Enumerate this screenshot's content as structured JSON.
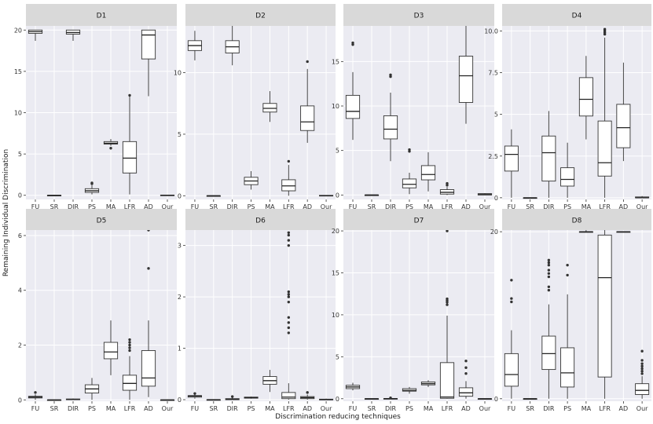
{
  "chart_data": {
    "type": "boxplot-facets",
    "xlabel": "Discrimination reducing techniques",
    "ylabel": "Remaining Individual Discrimination",
    "categories": [
      "FU",
      "SR",
      "DIR",
      "PS",
      "MA",
      "LFR",
      "AD",
      "Our"
    ],
    "colors": {
      "strip": "#d9d9d9",
      "panel": "#ebebf2",
      "box_fill": "#ffffff",
      "line": "#333333"
    },
    "panels": [
      {
        "title": "D1",
        "ylim": [
          -0.5,
          20.5
        ],
        "yticks": [
          0,
          5,
          10,
          15,
          20
        ],
        "boxes": [
          {
            "cat": "FU",
            "min": 18.7,
            "q1": 19.6,
            "median": 19.8,
            "q3": 20.0,
            "max": 20.0,
            "outliers": []
          },
          {
            "cat": "SR",
            "min": 0.0,
            "q1": 0.0,
            "median": 0.0,
            "q3": 0.0,
            "max": 0.0,
            "outliers": []
          },
          {
            "cat": "DIR",
            "min": 18.7,
            "q1": 19.5,
            "median": 19.7,
            "q3": 20.0,
            "max": 20.0,
            "outliers": []
          },
          {
            "cat": "PS",
            "min": 0.1,
            "q1": 0.35,
            "median": 0.55,
            "q3": 0.8,
            "max": 1.2,
            "outliers": [
              1.4,
              1.5
            ]
          },
          {
            "cat": "MA",
            "min": 6.0,
            "q1": 6.2,
            "median": 6.3,
            "q3": 6.5,
            "max": 6.8,
            "outliers": [
              5.7
            ]
          },
          {
            "cat": "LFR",
            "min": 0.1,
            "q1": 2.7,
            "median": 4.5,
            "q3": 6.5,
            "max": 12.0,
            "outliers": [
              12.1
            ]
          },
          {
            "cat": "AD",
            "min": 12.0,
            "q1": 16.5,
            "median": 19.4,
            "q3": 20.0,
            "max": 20.0,
            "outliers": []
          },
          {
            "cat": "Our",
            "min": 0.0,
            "q1": 0.0,
            "median": 0.0,
            "q3": 0.03,
            "max": 0.05,
            "outliers": []
          }
        ]
      },
      {
        "title": "D2",
        "ylim": [
          -0.3,
          13.8
        ],
        "yticks": [
          0,
          5,
          10
        ],
        "boxes": [
          {
            "cat": "FU",
            "min": 11.0,
            "q1": 11.8,
            "median": 12.2,
            "q3": 12.6,
            "max": 13.4,
            "outliers": []
          },
          {
            "cat": "SR",
            "min": 0.0,
            "q1": 0.0,
            "median": 0.0,
            "q3": 0.0,
            "max": 0.0,
            "outliers": []
          },
          {
            "cat": "DIR",
            "min": 10.6,
            "q1": 11.6,
            "median": 12.1,
            "q3": 12.6,
            "max": 13.8,
            "outliers": []
          },
          {
            "cat": "PS",
            "min": 0.5,
            "q1": 0.9,
            "median": 1.2,
            "q3": 1.5,
            "max": 2.0,
            "outliers": []
          },
          {
            "cat": "MA",
            "min": 6.0,
            "q1": 6.8,
            "median": 7.1,
            "q3": 7.5,
            "max": 8.5,
            "outliers": []
          },
          {
            "cat": "LFR",
            "min": 0.0,
            "q1": 0.4,
            "median": 0.8,
            "q3": 1.3,
            "max": 2.5,
            "outliers": [
              2.8
            ]
          },
          {
            "cat": "AD",
            "min": 4.3,
            "q1": 5.3,
            "median": 6.0,
            "q3": 7.3,
            "max": 10.3,
            "outliers": [
              10.9
            ]
          },
          {
            "cat": "Our",
            "min": 0.0,
            "q1": 0.0,
            "median": 0.0,
            "q3": 0.03,
            "max": 0.05,
            "outliers": []
          }
        ]
      },
      {
        "title": "D3",
        "ylim": [
          -0.5,
          19.0
        ],
        "yticks": [
          0,
          5,
          10,
          15
        ],
        "boxes": [
          {
            "cat": "FU",
            "min": 6.2,
            "q1": 8.6,
            "median": 9.4,
            "q3": 11.2,
            "max": 13.8,
            "outliers": [
              16.9,
              17.1
            ]
          },
          {
            "cat": "SR",
            "min": 0.0,
            "q1": 0.0,
            "median": 0.0,
            "q3": 0.0,
            "max": 0.0,
            "outliers": []
          },
          {
            "cat": "DIR",
            "min": 3.8,
            "q1": 6.3,
            "median": 7.4,
            "q3": 8.9,
            "max": 11.5,
            "outliers": [
              13.3,
              13.5
            ]
          },
          {
            "cat": "PS",
            "min": 0.1,
            "q1": 0.8,
            "median": 1.2,
            "q3": 1.8,
            "max": 2.5,
            "outliers": [
              4.9,
              5.1
            ]
          },
          {
            "cat": "MA",
            "min": 0.4,
            "q1": 1.7,
            "median": 2.3,
            "q3": 3.3,
            "max": 4.8,
            "outliers": []
          },
          {
            "cat": "LFR",
            "min": 0.0,
            "q1": 0.1,
            "median": 0.3,
            "q3": 0.6,
            "max": 0.9,
            "outliers": [
              1.1,
              1.3
            ]
          },
          {
            "cat": "AD",
            "min": 8.0,
            "q1": 10.4,
            "median": 13.4,
            "q3": 15.6,
            "max": 19.0,
            "outliers": []
          },
          {
            "cat": "Our",
            "min": 0.0,
            "q1": 0.0,
            "median": 0.1,
            "q3": 0.15,
            "max": 0.2,
            "outliers": []
          }
        ]
      },
      {
        "title": "D4",
        "ylim": [
          -0.1,
          10.3
        ],
        "yticks": [
          0,
          2.5,
          5,
          7.5,
          10
        ],
        "ytick_labels": [
          "0",
          "2.5",
          "5",
          "7.5",
          "10.0"
        ],
        "boxes": [
          {
            "cat": "FU",
            "min": 0.0,
            "q1": 1.6,
            "median": 2.6,
            "q3": 3.1,
            "max": 4.1,
            "outliers": []
          },
          {
            "cat": "SR",
            "min": 0.0,
            "q1": 0.0,
            "median": 0.0,
            "q3": 0.0,
            "max": 0.0,
            "outliers": []
          },
          {
            "cat": "DIR",
            "min": 0.0,
            "q1": 1.0,
            "median": 2.7,
            "q3": 3.7,
            "max": 5.2,
            "outliers": []
          },
          {
            "cat": "PS",
            "min": 0.0,
            "q1": 0.7,
            "median": 1.1,
            "q3": 1.8,
            "max": 3.3,
            "outliers": []
          },
          {
            "cat": "MA",
            "min": 3.5,
            "q1": 4.9,
            "median": 5.9,
            "q3": 7.2,
            "max": 8.5,
            "outliers": []
          },
          {
            "cat": "LFR",
            "min": 0.0,
            "q1": 1.3,
            "median": 2.1,
            "q3": 4.6,
            "max": 9.6,
            "outliers": [
              9.8,
              9.9,
              10.0,
              10.1
            ]
          },
          {
            "cat": "AD",
            "min": 2.2,
            "q1": 3.0,
            "median": 4.2,
            "q3": 5.6,
            "max": 8.1,
            "outliers": []
          },
          {
            "cat": "Our",
            "min": 0.0,
            "q1": 0.0,
            "median": 0.0,
            "q3": 0.05,
            "max": 0.1,
            "outliers": []
          }
        ]
      },
      {
        "title": "D5",
        "ylim": [
          -0.05,
          6.2
        ],
        "yticks": [
          0,
          2,
          4,
          6
        ],
        "boxes": [
          {
            "cat": "FU",
            "min": 0.0,
            "q1": 0.07,
            "median": 0.1,
            "q3": 0.13,
            "max": 0.2,
            "outliers": [
              0.27
            ]
          },
          {
            "cat": "SR",
            "min": 0.0,
            "q1": 0.0,
            "median": 0.0,
            "q3": 0.0,
            "max": 0.0,
            "outliers": []
          },
          {
            "cat": "DIR",
            "min": 0.0,
            "q1": 0.01,
            "median": 0.02,
            "q3": 0.03,
            "max": 0.05,
            "outliers": []
          },
          {
            "cat": "PS",
            "min": 0.0,
            "q1": 0.25,
            "median": 0.4,
            "q3": 0.55,
            "max": 0.8,
            "outliers": []
          },
          {
            "cat": "MA",
            "min": 0.9,
            "q1": 1.5,
            "median": 1.75,
            "q3": 2.1,
            "max": 2.9,
            "outliers": []
          },
          {
            "cat": "LFR",
            "min": 0.0,
            "q1": 0.35,
            "median": 0.6,
            "q3": 0.9,
            "max": 1.6,
            "outliers": [
              1.8,
              1.9,
              2.0,
              2.1,
              2.2
            ]
          },
          {
            "cat": "AD",
            "min": 0.1,
            "q1": 0.5,
            "median": 0.8,
            "q3": 1.8,
            "max": 2.9,
            "outliers": [
              4.8,
              6.2
            ]
          },
          {
            "cat": "Our",
            "min": 0.0,
            "q1": 0.0,
            "median": 0.0,
            "q3": 0.0,
            "max": 0.01,
            "outliers": []
          }
        ]
      },
      {
        "title": "D6",
        "ylim": [
          -0.03,
          3.3
        ],
        "yticks": [
          0,
          1,
          2,
          3
        ],
        "boxes": [
          {
            "cat": "FU",
            "min": 0.02,
            "q1": 0.05,
            "median": 0.07,
            "q3": 0.08,
            "max": 0.1,
            "outliers": [
              0.12
            ]
          },
          {
            "cat": "SR",
            "min": 0.0,
            "q1": 0.0,
            "median": 0.0,
            "q3": 0.0,
            "max": 0.0,
            "outliers": []
          },
          {
            "cat": "DIR",
            "min": 0.0,
            "q1": 0.0,
            "median": 0.01,
            "q3": 0.02,
            "max": 0.04,
            "outliers": [
              0.06
            ]
          },
          {
            "cat": "PS",
            "min": 0.02,
            "q1": 0.03,
            "median": 0.04,
            "q3": 0.05,
            "max": 0.06,
            "outliers": []
          },
          {
            "cat": "MA",
            "min": 0.15,
            "q1": 0.3,
            "median": 0.37,
            "q3": 0.45,
            "max": 0.58,
            "outliers": []
          },
          {
            "cat": "LFR",
            "min": 0.0,
            "q1": 0.02,
            "median": 0.05,
            "q3": 0.14,
            "max": 0.32,
            "outliers": [
              1.3,
              1.4,
              1.5,
              1.6,
              1.9,
              2.0,
              2.05,
              2.1,
              3.0,
              3.1,
              3.2,
              3.25
            ]
          },
          {
            "cat": "AD",
            "min": 0.0,
            "q1": 0.02,
            "median": 0.04,
            "q3": 0.06,
            "max": 0.1,
            "outliers": [
              0.14
            ]
          },
          {
            "cat": "Our",
            "min": 0.0,
            "q1": 0.0,
            "median": 0.0,
            "q3": 0.01,
            "max": 0.02,
            "outliers": []
          }
        ]
      },
      {
        "title": "D7",
        "ylim": [
          -0.3,
          20.1
        ],
        "yticks": [
          0,
          5,
          10,
          15,
          20
        ],
        "boxes": [
          {
            "cat": "FU",
            "min": 1.0,
            "q1": 1.2,
            "median": 1.4,
            "q3": 1.6,
            "max": 1.9,
            "outliers": []
          },
          {
            "cat": "SR",
            "min": 0.0,
            "q1": 0.0,
            "median": 0.0,
            "q3": 0.0,
            "max": 0.0,
            "outliers": []
          },
          {
            "cat": "DIR",
            "min": 0.0,
            "q1": 0.0,
            "median": 0.01,
            "q3": 0.02,
            "max": 0.05,
            "outliers": [
              0.1
            ]
          },
          {
            "cat": "PS",
            "min": 0.6,
            "q1": 0.9,
            "median": 1.0,
            "q3": 1.2,
            "max": 1.4,
            "outliers": []
          },
          {
            "cat": "MA",
            "min": 1.4,
            "q1": 1.65,
            "median": 1.8,
            "q3": 2.0,
            "max": 2.2,
            "outliers": []
          },
          {
            "cat": "LFR",
            "min": 0.0,
            "q1": 0.05,
            "median": 0.2,
            "q3": 4.3,
            "max": 9.9,
            "outliers": [
              11.2,
              11.5,
              11.7,
              11.9,
              20.0
            ]
          },
          {
            "cat": "AD",
            "min": 0.0,
            "q1": 0.3,
            "median": 0.7,
            "q3": 1.3,
            "max": 2.1,
            "outliers": [
              3.0,
              3.7,
              4.5
            ]
          },
          {
            "cat": "Our",
            "min": 0.0,
            "q1": 0.0,
            "median": 0.0,
            "q3": 0.0,
            "max": 0.01,
            "outliers": []
          }
        ]
      },
      {
        "title": "D8",
        "ylim": [
          -0.3,
          20.2
        ],
        "yticks": [
          0,
          20
        ],
        "boxes": [
          {
            "cat": "FU",
            "min": 0.0,
            "q1": 1.5,
            "median": 2.9,
            "q3": 5.4,
            "max": 8.2,
            "outliers": [
              11.6,
              12.0,
              14.2
            ]
          },
          {
            "cat": "SR",
            "min": 0.0,
            "q1": 0.0,
            "median": 0.0,
            "q3": 0.0,
            "max": 0.0,
            "outliers": []
          },
          {
            "cat": "DIR",
            "min": 0.0,
            "q1": 3.5,
            "median": 5.4,
            "q3": 7.5,
            "max": 11.3,
            "outliers": [
              13.0,
              13.4,
              14.6,
              15.0,
              15.4,
              16.0,
              16.3,
              16.6
            ]
          },
          {
            "cat": "PS",
            "min": 0.0,
            "q1": 1.4,
            "median": 3.1,
            "q3": 6.1,
            "max": 12.5,
            "outliers": [
              14.8,
              16.0
            ]
          },
          {
            "cat": "MA",
            "min": 20.0,
            "q1": 20.0,
            "median": 20.0,
            "q3": 20.0,
            "max": 20.3,
            "outliers": []
          },
          {
            "cat": "LFR",
            "min": 0.0,
            "q1": 2.6,
            "median": 14.5,
            "q3": 19.6,
            "max": 20.3,
            "outliers": []
          },
          {
            "cat": "AD",
            "min": 20.0,
            "q1": 20.0,
            "median": 20.0,
            "q3": 20.0,
            "max": 20.0,
            "outliers": []
          },
          {
            "cat": "Our",
            "min": 0.0,
            "q1": 0.5,
            "median": 1.0,
            "q3": 1.8,
            "max": 2.7,
            "outliers": [
              3.0,
              3.3,
              3.6,
              3.9,
              4.2,
              4.6,
              5.7
            ]
          }
        ]
      }
    ]
  }
}
